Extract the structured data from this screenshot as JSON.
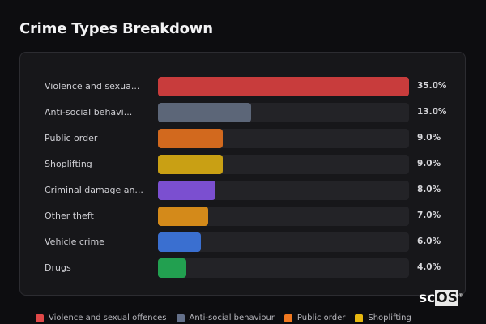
{
  "title": "Crime Types Breakdown",
  "chart_data": {
    "type": "bar",
    "orientation": "horizontal",
    "title": "Crime Types Breakdown",
    "categories": [
      "Violence and sexua...",
      "Anti-social behavi...",
      "Public order",
      "Shoplifting",
      "Criminal damage an...",
      "Other theft",
      "Vehicle crime",
      "Drugs"
    ],
    "values": [
      35.0,
      13.0,
      9.0,
      9.0,
      8.0,
      7.0,
      6.0,
      4.0
    ],
    "value_labels": [
      "35.0%",
      "13.0%",
      "9.0%",
      "9.0%",
      "8.0%",
      "7.0%",
      "6.0%",
      "4.0%"
    ],
    "colors": [
      "#c83c3c",
      "#5c6678",
      "#d2691e",
      "#c9a014",
      "#7b4fd0",
      "#d48a1a",
      "#3a6fd0",
      "#22a050"
    ],
    "xlim": [
      0,
      35
    ],
    "grid": false
  },
  "legend": [
    {
      "label": "Violence and sexual offences",
      "color": "#e04848"
    },
    {
      "label": "Anti-social behaviour",
      "color": "#64708a"
    },
    {
      "label": "Public order",
      "color": "#f07820"
    },
    {
      "label": "Shoplifting",
      "color": "#e8b810"
    }
  ],
  "logo": {
    "text_a": "sc",
    "text_b": "OS",
    "mark": "®"
  }
}
